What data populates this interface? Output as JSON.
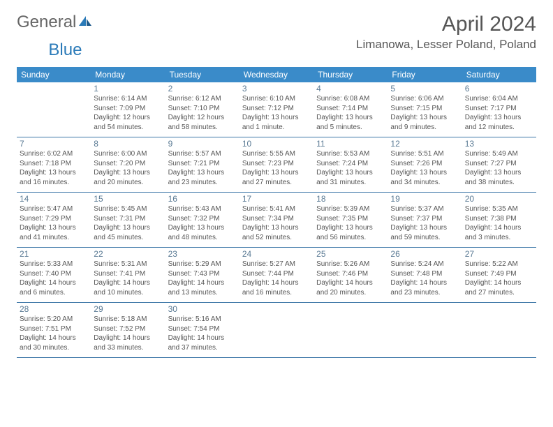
{
  "brand": {
    "part1": "General",
    "part2": "Blue"
  },
  "title": "April 2024",
  "location": "Limanowa, Lesser Poland, Poland",
  "colors": {
    "header_bg": "#3a8bc9",
    "rule": "#3a75a6",
    "daynum": "#5a7a94"
  },
  "day_headers": [
    "Sunday",
    "Monday",
    "Tuesday",
    "Wednesday",
    "Thursday",
    "Friday",
    "Saturday"
  ],
  "weeks": [
    [
      null,
      {
        "n": "1",
        "r": "6:14 AM",
        "s": "7:09 PM",
        "d": "12 hours and 54 minutes."
      },
      {
        "n": "2",
        "r": "6:12 AM",
        "s": "7:10 PM",
        "d": "12 hours and 58 minutes."
      },
      {
        "n": "3",
        "r": "6:10 AM",
        "s": "7:12 PM",
        "d": "13 hours and 1 minute."
      },
      {
        "n": "4",
        "r": "6:08 AM",
        "s": "7:14 PM",
        "d": "13 hours and 5 minutes."
      },
      {
        "n": "5",
        "r": "6:06 AM",
        "s": "7:15 PM",
        "d": "13 hours and 9 minutes."
      },
      {
        "n": "6",
        "r": "6:04 AM",
        "s": "7:17 PM",
        "d": "13 hours and 12 minutes."
      }
    ],
    [
      {
        "n": "7",
        "r": "6:02 AM",
        "s": "7:18 PM",
        "d": "13 hours and 16 minutes."
      },
      {
        "n": "8",
        "r": "6:00 AM",
        "s": "7:20 PM",
        "d": "13 hours and 20 minutes."
      },
      {
        "n": "9",
        "r": "5:57 AM",
        "s": "7:21 PM",
        "d": "13 hours and 23 minutes."
      },
      {
        "n": "10",
        "r": "5:55 AM",
        "s": "7:23 PM",
        "d": "13 hours and 27 minutes."
      },
      {
        "n": "11",
        "r": "5:53 AM",
        "s": "7:24 PM",
        "d": "13 hours and 31 minutes."
      },
      {
        "n": "12",
        "r": "5:51 AM",
        "s": "7:26 PM",
        "d": "13 hours and 34 minutes."
      },
      {
        "n": "13",
        "r": "5:49 AM",
        "s": "7:27 PM",
        "d": "13 hours and 38 minutes."
      }
    ],
    [
      {
        "n": "14",
        "r": "5:47 AM",
        "s": "7:29 PM",
        "d": "13 hours and 41 minutes."
      },
      {
        "n": "15",
        "r": "5:45 AM",
        "s": "7:31 PM",
        "d": "13 hours and 45 minutes."
      },
      {
        "n": "16",
        "r": "5:43 AM",
        "s": "7:32 PM",
        "d": "13 hours and 48 minutes."
      },
      {
        "n": "17",
        "r": "5:41 AM",
        "s": "7:34 PM",
        "d": "13 hours and 52 minutes."
      },
      {
        "n": "18",
        "r": "5:39 AM",
        "s": "7:35 PM",
        "d": "13 hours and 56 minutes."
      },
      {
        "n": "19",
        "r": "5:37 AM",
        "s": "7:37 PM",
        "d": "13 hours and 59 minutes."
      },
      {
        "n": "20",
        "r": "5:35 AM",
        "s": "7:38 PM",
        "d": "14 hours and 3 minutes."
      }
    ],
    [
      {
        "n": "21",
        "r": "5:33 AM",
        "s": "7:40 PM",
        "d": "14 hours and 6 minutes."
      },
      {
        "n": "22",
        "r": "5:31 AM",
        "s": "7:41 PM",
        "d": "14 hours and 10 minutes."
      },
      {
        "n": "23",
        "r": "5:29 AM",
        "s": "7:43 PM",
        "d": "14 hours and 13 minutes."
      },
      {
        "n": "24",
        "r": "5:27 AM",
        "s": "7:44 PM",
        "d": "14 hours and 16 minutes."
      },
      {
        "n": "25",
        "r": "5:26 AM",
        "s": "7:46 PM",
        "d": "14 hours and 20 minutes."
      },
      {
        "n": "26",
        "r": "5:24 AM",
        "s": "7:48 PM",
        "d": "14 hours and 23 minutes."
      },
      {
        "n": "27",
        "r": "5:22 AM",
        "s": "7:49 PM",
        "d": "14 hours and 27 minutes."
      }
    ],
    [
      {
        "n": "28",
        "r": "5:20 AM",
        "s": "7:51 PM",
        "d": "14 hours and 30 minutes."
      },
      {
        "n": "29",
        "r": "5:18 AM",
        "s": "7:52 PM",
        "d": "14 hours and 33 minutes."
      },
      {
        "n": "30",
        "r": "5:16 AM",
        "s": "7:54 PM",
        "d": "14 hours and 37 minutes."
      },
      null,
      null,
      null,
      null
    ]
  ],
  "labels": {
    "sunrise": "Sunrise:",
    "sunset": "Sunset:",
    "daylight": "Daylight:"
  }
}
